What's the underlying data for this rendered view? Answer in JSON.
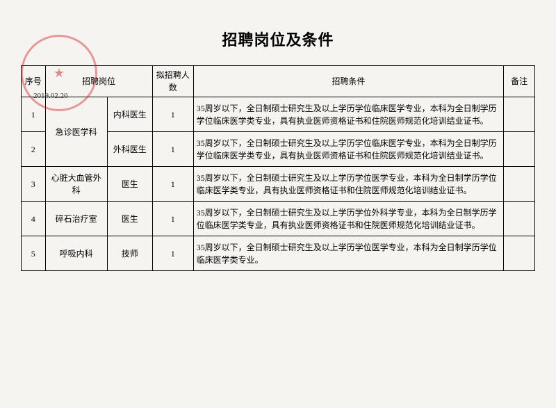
{
  "title": "招聘岗位及条件",
  "stamp_date": "2019.02.20",
  "headers": {
    "idx": "序号",
    "position": "招聘岗位",
    "planned": "拟招聘人数",
    "requirements": "招聘条件",
    "note": "备注"
  },
  "rows": [
    {
      "idx": "1",
      "dept": "急诊医学科",
      "role": "内科医生",
      "num": "1",
      "req": "35周岁以下，全日制硕士研究生及以上学历学位临床医学专业，本科为全日制学历学位临床医学类专业，具有执业医师资格证书和住院医师规范化培训结业证书。",
      "note": ""
    },
    {
      "idx": "2",
      "dept": "",
      "role": "外科医生",
      "num": "1",
      "req": "35周岁以下，全日制硕士研究生及以上学历学位临床医学专业，本科为全日制学历学位临床医学类专业，具有执业医师资格证书和住院医师规范化培训结业证书。",
      "note": ""
    },
    {
      "idx": "3",
      "dept": "心脏大血管外科",
      "role": "医生",
      "num": "1",
      "req": "35周岁以下，全日制硕士研究生及以上学历学位医学专业，本科为全日制学历学位临床医学类专业，具有执业医师资格证书和住院医师规范化培训结业证书。",
      "note": ""
    },
    {
      "idx": "4",
      "dept": "碎石治疗室",
      "role": "医生",
      "num": "1",
      "req": "35周岁以下，全日制硕士研究生及以上学历学位外科学专业，本科为全日制学历学位临床医学类专业，具有执业医师资格证书和住院医师规范化培训结业证书。",
      "note": ""
    },
    {
      "idx": "5",
      "dept": "呼吸内科",
      "role": "技师",
      "num": "1",
      "req": "35周岁以下，全日制硕士研究生及以上学历学位医学专业，本科为全日制学历学位临床医学类专业。",
      "note": ""
    }
  ]
}
